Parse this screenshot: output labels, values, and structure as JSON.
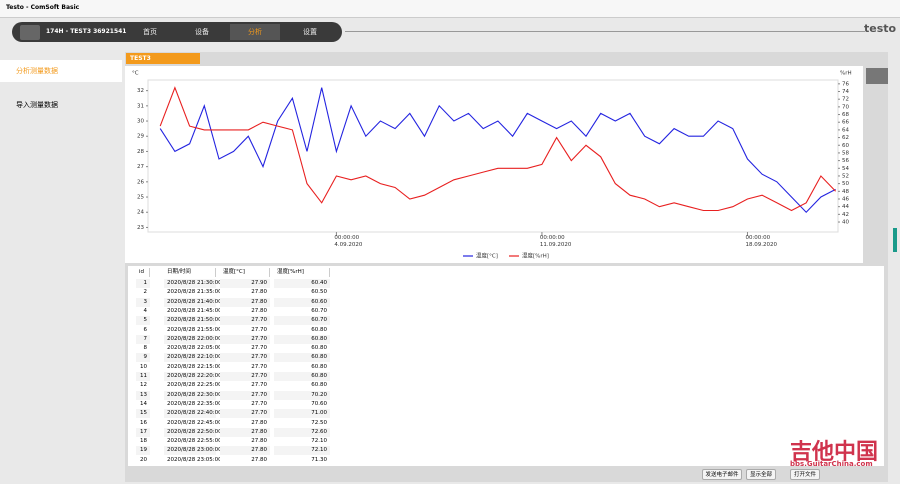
{
  "window_title": "Testo - ComSoft Basic",
  "device": "174H - TEST3 36921541",
  "nav": [
    "首页",
    "设备",
    "分析",
    "设置"
  ],
  "logo": "testo",
  "sidebar": [
    "分析测量数据",
    "导入测量数据"
  ],
  "tab": "TEST3",
  "chart_data": {
    "type": "line",
    "y_unit": "°C",
    "y2_unit": "%rH",
    "x": [
      "2020-08-29T00:00",
      "2020-08-29T12:00",
      "2020-08-30T00:00",
      "2020-08-30T12:00",
      "2020-08-31T00:00",
      "2020-08-31T12:00",
      "2020-09-01T00:00",
      "2020-09-01T12:00",
      "2020-09-02T00:00",
      "2020-09-02T12:00",
      "2020-09-03T00:00",
      "2020-09-03T12:00",
      "2020-09-04T00:00",
      "2020-09-04T12:00",
      "2020-09-05T00:00",
      "2020-09-05T12:00",
      "2020-09-06T00:00",
      "2020-09-06T12:00",
      "2020-09-07T00:00",
      "2020-09-07T12:00",
      "2020-09-08T00:00",
      "2020-09-08T12:00",
      "2020-09-09T00:00",
      "2020-09-09T12:00",
      "2020-09-10T00:00",
      "2020-09-10T12:00",
      "2020-09-11T00:00",
      "2020-09-11T12:00",
      "2020-09-12T00:00",
      "2020-09-12T12:00",
      "2020-09-13T00:00",
      "2020-09-13T12:00",
      "2020-09-14T00:00",
      "2020-09-14T12:00",
      "2020-09-15T00:00",
      "2020-09-15T12:00",
      "2020-09-16T00:00",
      "2020-09-16T12:00",
      "2020-09-17T00:00",
      "2020-09-17T12:00",
      "2020-09-18T00:00",
      "2020-09-18T12:00",
      "2020-09-19T00:00",
      "2020-09-19T12:00",
      "2020-09-20T00:00",
      "2020-09-20T12:00",
      "2020-09-21T00:00"
    ],
    "xlim": [
      "2020-08-28T14:00",
      "2020-09-21T02:00"
    ],
    "xticks": [
      {
        "value": "2020-09-04T00:00",
        "label": "00:00:00 4.09.2020"
      },
      {
        "value": "2020-09-11T00:00",
        "label": "00:00:00 11.09.2020"
      },
      {
        "value": "2020-09-18T00:00",
        "label": "00:00:00 18.09.2020"
      }
    ],
    "ylim": [
      22.7,
      32.7
    ],
    "yticks": [
      23,
      24,
      25,
      26,
      27,
      28,
      29,
      30,
      31,
      32
    ],
    "y2lim": [
      37.4,
      77
    ],
    "y2ticks": [
      40,
      42,
      44,
      46,
      48,
      50,
      52,
      54,
      56,
      58,
      60,
      62,
      64,
      66,
      68,
      70,
      72,
      74,
      76
    ],
    "series": [
      {
        "name": "温度[°C]",
        "color": "#2424e0",
        "values": [
          29.5,
          28,
          28.5,
          31,
          27.5,
          28,
          29,
          27,
          30,
          31.5,
          28,
          32.2,
          28,
          31,
          29,
          30,
          29.5,
          30.5,
          29,
          31,
          30,
          30.5,
          29.5,
          30,
          29,
          30.5,
          30,
          29.5,
          30,
          29,
          30.5,
          30,
          30.5,
          29,
          28.5,
          29.5,
          29,
          29,
          30,
          29.5,
          27.5,
          26.5,
          26,
          25,
          24,
          25,
          25.5
        ]
      },
      {
        "name": "湿度[%rH]",
        "color": "#e82020",
        "axis": "y2",
        "values": [
          65,
          75,
          65,
          64,
          64,
          64,
          64,
          66,
          65,
          64,
          50,
          45,
          52,
          51,
          52,
          50,
          49,
          46,
          47,
          49,
          51,
          52,
          53,
          54,
          54,
          54,
          55,
          62,
          56,
          60,
          57,
          50,
          47,
          46,
          44,
          45,
          44,
          43,
          43,
          44,
          46,
          47,
          45,
          43,
          45,
          52,
          48
        ]
      }
    ]
  },
  "table": {
    "columns": [
      "id",
      "日期/时间",
      "温度[°C]",
      "湿度[%rH]"
    ],
    "rows": [
      [
        "1",
        "2020/8/28 21:30:00",
        "27.90",
        "60.40"
      ],
      [
        "2",
        "2020/8/28 21:35:00",
        "27.80",
        "60.50"
      ],
      [
        "3",
        "2020/8/28 21:40:00",
        "27.80",
        "60.60"
      ],
      [
        "4",
        "2020/8/28 21:45:00",
        "27.80",
        "60.70"
      ],
      [
        "5",
        "2020/8/28 21:50:00",
        "27.70",
        "60.70"
      ],
      [
        "6",
        "2020/8/28 21:55:00",
        "27.70",
        "60.80"
      ],
      [
        "7",
        "2020/8/28 22:00:00",
        "27.70",
        "60.80"
      ],
      [
        "8",
        "2020/8/28 22:05:00",
        "27.70",
        "60.80"
      ],
      [
        "9",
        "2020/8/28 22:10:00",
        "27.70",
        "60.80"
      ],
      [
        "10",
        "2020/8/28 22:15:00",
        "27.70",
        "60.80"
      ],
      [
        "11",
        "2020/8/28 22:20:00",
        "27.70",
        "60.80"
      ],
      [
        "12",
        "2020/8/28 22:25:00",
        "27.70",
        "60.80"
      ],
      [
        "13",
        "2020/8/28 22:30:00",
        "27.70",
        "70.20"
      ],
      [
        "14",
        "2020/8/28 22:35:00",
        "27.70",
        "70.60"
      ],
      [
        "15",
        "2020/8/28 22:40:00",
        "27.70",
        "71.00"
      ],
      [
        "16",
        "2020/8/28 22:45:00",
        "27.80",
        "72.50"
      ],
      [
        "17",
        "2020/8/28 22:50:00",
        "27.80",
        "72.60"
      ],
      [
        "18",
        "2020/8/28 22:55:00",
        "27.80",
        "72.10"
      ],
      [
        "19",
        "2020/8/28 23:00:00",
        "27.80",
        "72.10"
      ],
      [
        "20",
        "2020/8/28 23:05:00",
        "27.80",
        "71.30"
      ]
    ]
  },
  "buttons": [
    "发送电子邮件",
    "显示全部",
    "打开文件"
  ],
  "watermark": [
    "吉他中国",
    "bbs.GuitarChina.com"
  ]
}
